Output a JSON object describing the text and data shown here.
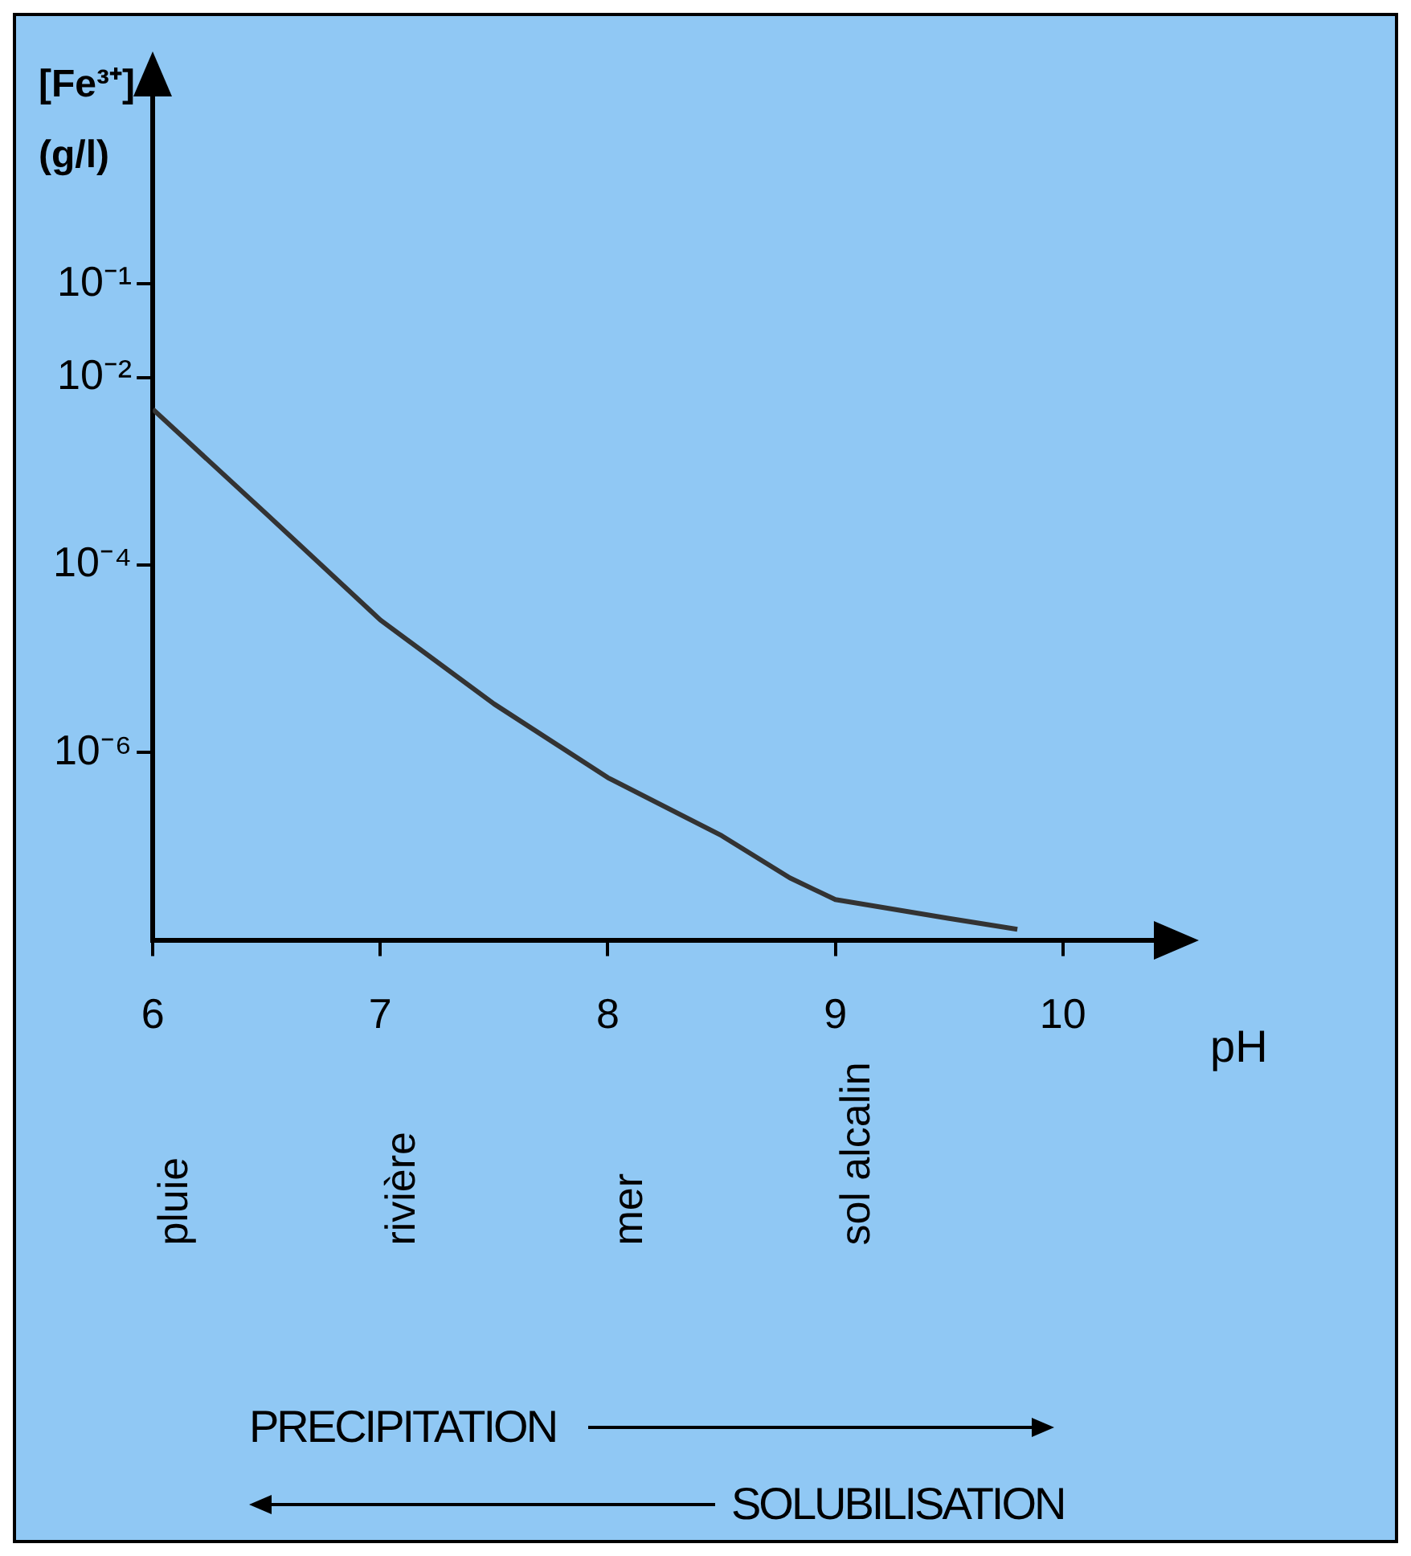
{
  "chart_data": {
    "type": "line",
    "ylabel": "[Fe³⁺] (g/l)",
    "xlabel": "pH",
    "log": "y",
    "grid": false,
    "legend": false,
    "marker": "none",
    "line_style": "solid",
    "x": [
      6,
      6.5,
      7,
      7.5,
      8,
      8.5,
      8.8,
      9,
      9.5,
      9.8
    ],
    "series": [
      {
        "color": "#333333",
        "values": [
          0.0046,
          0.00035,
          2.6e-05,
          3.3e-06,
          5.4e-07,
          1.3e-07,
          4.6e-08,
          2.7e-08,
          1.7e-08,
          1.3e-08
        ]
      }
    ],
    "xlim": [
      6,
      10.4
    ],
    "xticks": [
      6,
      7,
      8,
      9,
      10
    ],
    "ylim": [
      1e-08,
      10
    ],
    "yticks": [
      {
        "value": 0.1,
        "label": "10⁻¹"
      },
      {
        "value": 0.01,
        "label": "10⁻²"
      },
      {
        "value": 0.0001,
        "label": "10⁻⁴"
      },
      {
        "value": 1e-06,
        "label": "10⁻⁶"
      }
    ],
    "annotations": [
      "pluie",
      "rivière",
      "mer",
      "sol alcalin",
      "PRECIPITATION",
      "SOLUBILISATION"
    ]
  }
}
